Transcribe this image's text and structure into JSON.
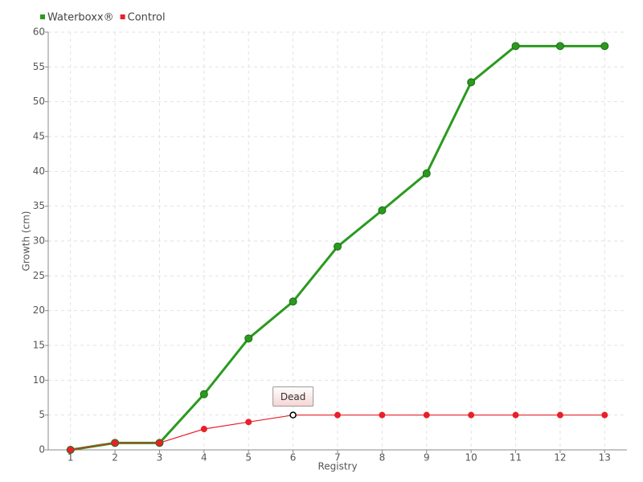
{
  "chart_data": {
    "type": "line",
    "xlabel": "Registry",
    "ylabel": "Growth (cm)",
    "x": [
      1,
      2,
      3,
      4,
      5,
      6,
      7,
      8,
      9,
      10,
      11,
      12,
      13
    ],
    "xlim": [
      0.5,
      13.5
    ],
    "xticks": [
      1,
      2,
      3,
      4,
      5,
      6,
      7,
      8,
      9,
      10,
      11,
      12,
      13
    ],
    "ylim": [
      0,
      60
    ],
    "yticks": [
      0,
      5,
      10,
      15,
      20,
      25,
      30,
      35,
      40,
      45,
      50,
      55,
      60
    ],
    "grid": true,
    "legend": "top-left",
    "series": [
      {
        "name": "Waterboxx®",
        "color": "#2a9a1e",
        "values": [
          0,
          1,
          1,
          8,
          16,
          21.3,
          29.2,
          34.4,
          39.7,
          52.8,
          58,
          58,
          58
        ]
      },
      {
        "name": "Control",
        "color": "#e8202a",
        "values": [
          0,
          1,
          1,
          3,
          4,
          5,
          5,
          5,
          5,
          5,
          5,
          5,
          5
        ]
      }
    ],
    "annotations": [
      {
        "text": "Dead",
        "x": 6,
        "y": 5
      }
    ]
  }
}
